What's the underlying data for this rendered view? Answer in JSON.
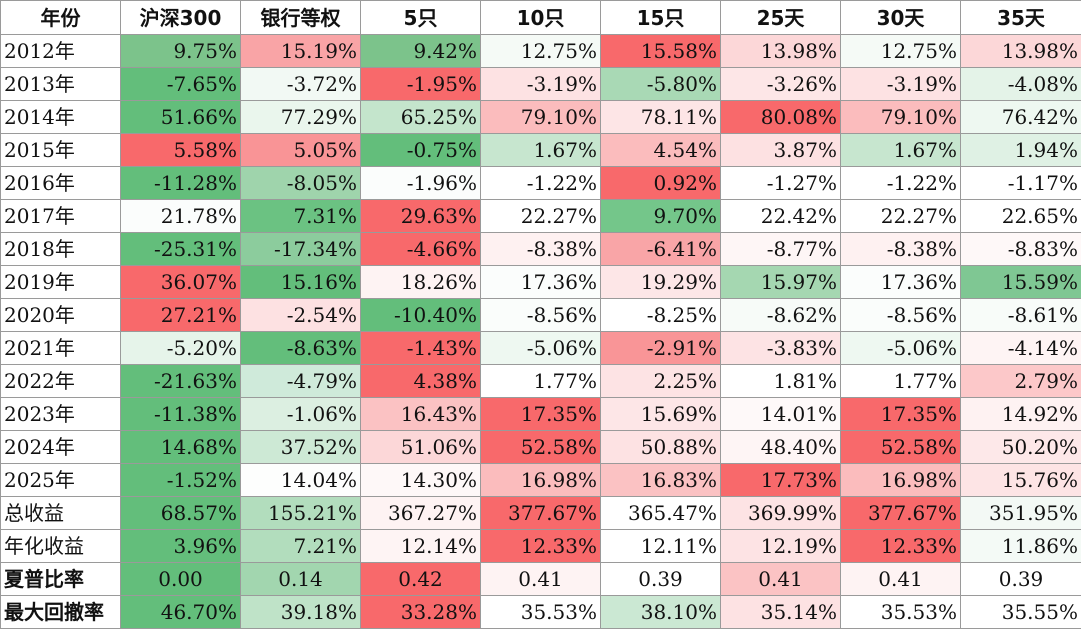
{
  "columns": [
    "年份",
    "沪深300",
    "银行等权",
    "5只",
    "10只",
    "15只",
    "25天",
    "30天",
    "35天"
  ],
  "rows": [
    {
      "label": "2012年",
      "cells": [
        {
          "text": "9.75%",
          "bg": "#7cc38b"
        },
        {
          "text": "15.19%",
          "bg": "#f9a4a6"
        },
        {
          "text": "9.42%",
          "bg": "#7cc38b"
        },
        {
          "text": "12.75%",
          "bg": "#f5faf6"
        },
        {
          "text": "15.58%",
          "bg": "#f8696b"
        },
        {
          "text": "13.98%",
          "bg": "#fcd7d8"
        },
        {
          "text": "12.75%",
          "bg": "#f5faf6"
        },
        {
          "text": "13.98%",
          "bg": "#fcd7d8"
        }
      ]
    },
    {
      "label": "2013年",
      "cells": [
        {
          "text": "-7.65%",
          "bg": "#63be7b"
        },
        {
          "text": "-3.72%",
          "bg": "#f2f9f4"
        },
        {
          "text": "-1.95%",
          "bg": "#f8696b"
        },
        {
          "text": "-3.19%",
          "bg": "#fde2e3"
        },
        {
          "text": "-5.80%",
          "bg": "#a9d9b5"
        },
        {
          "text": "-3.26%",
          "bg": "#fde6e7"
        },
        {
          "text": "-3.19%",
          "bg": "#fde2e3"
        },
        {
          "text": "-4.08%",
          "bg": "#e4f3e8"
        }
      ]
    },
    {
      "label": "2014年",
      "cells": [
        {
          "text": "51.66%",
          "bg": "#63be7b"
        },
        {
          "text": "77.29%",
          "bg": "#eaf6ed"
        },
        {
          "text": "65.25%",
          "bg": "#c4e5cc"
        },
        {
          "text": "79.10%",
          "bg": "#fbbcbd"
        },
        {
          "text": "78.11%",
          "bg": "#fde5e6"
        },
        {
          "text": "80.08%",
          "bg": "#f8696b"
        },
        {
          "text": "79.10%",
          "bg": "#fbbcbd"
        },
        {
          "text": "76.42%",
          "bg": "#eef8f1"
        }
      ]
    },
    {
      "label": "2015年",
      "cells": [
        {
          "text": "5.58%",
          "bg": "#f8696b"
        },
        {
          "text": "5.05%",
          "bg": "#f99496"
        },
        {
          "text": "-0.75%",
          "bg": "#63be7b"
        },
        {
          "text": "1.67%",
          "bg": "#c7e6cf"
        },
        {
          "text": "4.54%",
          "bg": "#fbbcbd"
        },
        {
          "text": "3.87%",
          "bg": "#fde1e2"
        },
        {
          "text": "1.67%",
          "bg": "#c7e6cf"
        },
        {
          "text": "1.94%",
          "bg": "#dff1e4"
        }
      ]
    },
    {
      "label": "2016年",
      "cells": [
        {
          "text": "-11.28%",
          "bg": "#63be7b"
        },
        {
          "text": "-8.05%",
          "bg": "#9fd4ac"
        },
        {
          "text": "-1.96%",
          "bg": "#fbfdfc"
        },
        {
          "text": "-1.22%",
          "bg": "#ffffff"
        },
        {
          "text": "0.92%",
          "bg": "#f8696b"
        },
        {
          "text": "-1.27%",
          "bg": "#ffffff"
        },
        {
          "text": "-1.22%",
          "bg": "#ffffff"
        },
        {
          "text": "-1.17%",
          "bg": "#ffffff"
        }
      ]
    },
    {
      "label": "2017年",
      "cells": [
        {
          "text": "21.78%",
          "bg": "#fbfdfc"
        },
        {
          "text": "7.31%",
          "bg": "#6bc282"
        },
        {
          "text": "29.63%",
          "bg": "#f8696b"
        },
        {
          "text": "22.27%",
          "bg": "#ffffff"
        },
        {
          "text": "9.70%",
          "bg": "#74c68a"
        },
        {
          "text": "22.42%",
          "bg": "#ffffff"
        },
        {
          "text": "22.27%",
          "bg": "#ffffff"
        },
        {
          "text": "22.65%",
          "bg": "#ffffff"
        }
      ]
    },
    {
      "label": "2018年",
      "cells": [
        {
          "text": "-25.31%",
          "bg": "#63be7b"
        },
        {
          "text": "-17.34%",
          "bg": "#8ccc9d"
        },
        {
          "text": "-4.66%",
          "bg": "#f8696b"
        },
        {
          "text": "-8.38%",
          "bg": "#fef1f1"
        },
        {
          "text": "-6.41%",
          "bg": "#f9a5a7"
        },
        {
          "text": "-8.77%",
          "bg": "#fef6f6"
        },
        {
          "text": "-8.38%",
          "bg": "#fef1f1"
        },
        {
          "text": "-8.83%",
          "bg": "#fef8f8"
        }
      ]
    },
    {
      "label": "2019年",
      "cells": [
        {
          "text": "36.07%",
          "bg": "#f8696b"
        },
        {
          "text": "15.16%",
          "bg": "#63be7b"
        },
        {
          "text": "18.26%",
          "bg": "#fef3f3"
        },
        {
          "text": "17.36%",
          "bg": "#fbfdfc"
        },
        {
          "text": "19.29%",
          "bg": "#fde6e7"
        },
        {
          "text": "15.97%",
          "bg": "#a5d7b1"
        },
        {
          "text": "17.36%",
          "bg": "#fbfdfc"
        },
        {
          "text": "15.59%",
          "bg": "#7fc793"
        }
      ]
    },
    {
      "label": "2020年",
      "cells": [
        {
          "text": "27.21%",
          "bg": "#f8696b"
        },
        {
          "text": "-2.54%",
          "bg": "#fde1e2"
        },
        {
          "text": "-10.40%",
          "bg": "#63be7b"
        },
        {
          "text": "-8.56%",
          "bg": "#fafdfb"
        },
        {
          "text": "-8.25%",
          "bg": "#ffffff"
        },
        {
          "text": "-8.62%",
          "bg": "#f7fbf8"
        },
        {
          "text": "-8.56%",
          "bg": "#fafdfb"
        },
        {
          "text": "-8.61%",
          "bg": "#f8fcf9"
        }
      ]
    },
    {
      "label": "2021年",
      "cells": [
        {
          "text": "-5.20%",
          "bg": "#e6f4ea"
        },
        {
          "text": "-8.63%",
          "bg": "#63be7b"
        },
        {
          "text": "-1.43%",
          "bg": "#f8696b"
        },
        {
          "text": "-5.06%",
          "bg": "#eef8f1"
        },
        {
          "text": "-2.91%",
          "bg": "#f99597"
        },
        {
          "text": "-3.83%",
          "bg": "#fde3e4"
        },
        {
          "text": "-5.06%",
          "bg": "#eef8f1"
        },
        {
          "text": "-4.14%",
          "bg": "#fef4f4"
        }
      ]
    },
    {
      "label": "2022年",
      "cells": [
        {
          "text": "-21.63%",
          "bg": "#63be7b"
        },
        {
          "text": "-4.79%",
          "bg": "#cfeada"
        },
        {
          "text": "4.38%",
          "bg": "#f8696b"
        },
        {
          "text": "1.77%",
          "bg": "#ffffff"
        },
        {
          "text": "2.25%",
          "bg": "#fde3e4"
        },
        {
          "text": "1.81%",
          "bg": "#ffffff"
        },
        {
          "text": "1.77%",
          "bg": "#ffffff"
        },
        {
          "text": "2.79%",
          "bg": "#fcc8c9"
        }
      ]
    },
    {
      "label": "2023年",
      "cells": [
        {
          "text": "-11.38%",
          "bg": "#63be7b"
        },
        {
          "text": "-1.06%",
          "bg": "#dcefe1"
        },
        {
          "text": "16.43%",
          "bg": "#fbc2c3"
        },
        {
          "text": "17.35%",
          "bg": "#f8696b"
        },
        {
          "text": "15.69%",
          "bg": "#fde6e7"
        },
        {
          "text": "14.01%",
          "bg": "#fef9f9"
        },
        {
          "text": "17.35%",
          "bg": "#f8696b"
        },
        {
          "text": "14.92%",
          "bg": "#fef2f2"
        }
      ]
    },
    {
      "label": "2024年",
      "cells": [
        {
          "text": "14.68%",
          "bg": "#63be7b"
        },
        {
          "text": "37.52%",
          "bg": "#cde9d5"
        },
        {
          "text": "51.06%",
          "bg": "#fcd7d8"
        },
        {
          "text": "52.58%",
          "bg": "#f8696b"
        },
        {
          "text": "50.88%",
          "bg": "#fde2e3"
        },
        {
          "text": "48.40%",
          "bg": "#fef5f5"
        },
        {
          "text": "52.58%",
          "bg": "#f8696b"
        },
        {
          "text": "50.20%",
          "bg": "#fde8e9"
        }
      ]
    },
    {
      "label": "2025年",
      "cells": [
        {
          "text": "-1.52%",
          "bg": "#63be7b"
        },
        {
          "text": "14.04%",
          "bg": "#fdfefd"
        },
        {
          "text": "14.30%",
          "bg": "#fef8f8"
        },
        {
          "text": "16.98%",
          "bg": "#fbbcbd"
        },
        {
          "text": "16.83%",
          "bg": "#fbc2c3"
        },
        {
          "text": "17.73%",
          "bg": "#f8696b"
        },
        {
          "text": "16.98%",
          "bg": "#fbbcbd"
        },
        {
          "text": "15.76%",
          "bg": "#fde4e5"
        }
      ]
    },
    {
      "label": "总收益",
      "bold": false,
      "cells": [
        {
          "text": "68.57%",
          "bg": "#63be7b"
        },
        {
          "text": "155.21%",
          "bg": "#b2ddbd"
        },
        {
          "text": "367.27%",
          "bg": "#fef3f3"
        },
        {
          "text": "377.67%",
          "bg": "#f8696b"
        },
        {
          "text": "365.47%",
          "bg": "#ffffff"
        },
        {
          "text": "369.99%",
          "bg": "#fde3e4"
        },
        {
          "text": "377.67%",
          "bg": "#f8696b"
        },
        {
          "text": "351.95%",
          "bg": "#f3f9f5"
        }
      ]
    },
    {
      "label": "年化收益",
      "bold": false,
      "cells": [
        {
          "text": "3.96%",
          "bg": "#63be7b"
        },
        {
          "text": "7.21%",
          "bg": "#b2ddbd"
        },
        {
          "text": "12.14%",
          "bg": "#fef4f4"
        },
        {
          "text": "12.33%",
          "bg": "#f8696b"
        },
        {
          "text": "12.11%",
          "bg": "#ffffff"
        },
        {
          "text": "12.19%",
          "bg": "#fde3e4"
        },
        {
          "text": "12.33%",
          "bg": "#f8696b"
        },
        {
          "text": "11.86%",
          "bg": "#f4faf6"
        }
      ]
    },
    {
      "label": "夏普比率",
      "bold": true,
      "center": true,
      "cells": [
        {
          "text": "0.00",
          "bg": "#63be7b"
        },
        {
          "text": "0.14",
          "bg": "#a2d6af"
        },
        {
          "text": "0.42",
          "bg": "#f8696b"
        },
        {
          "text": "0.41",
          "bg": "#fef3f3"
        },
        {
          "text": "0.39",
          "bg": "#ffffff"
        },
        {
          "text": "0.41",
          "bg": "#fbc3c4"
        },
        {
          "text": "0.41",
          "bg": "#fef3f3"
        },
        {
          "text": "0.39",
          "bg": "#ffffff"
        }
      ]
    },
    {
      "label": "最大回撤率",
      "bold": true,
      "cells": [
        {
          "text": "46.70%",
          "bg": "#63be7b"
        },
        {
          "text": "39.18%",
          "bg": "#bfe3c8"
        },
        {
          "text": "33.28%",
          "bg": "#f8696b"
        },
        {
          "text": "35.53%",
          "bg": "#ffffff"
        },
        {
          "text": "38.10%",
          "bg": "#cbe8d3"
        },
        {
          "text": "35.14%",
          "bg": "#fde2e3"
        },
        {
          "text": "35.53%",
          "bg": "#ffffff"
        },
        {
          "text": "35.55%",
          "bg": "#ffffff"
        }
      ]
    }
  ]
}
